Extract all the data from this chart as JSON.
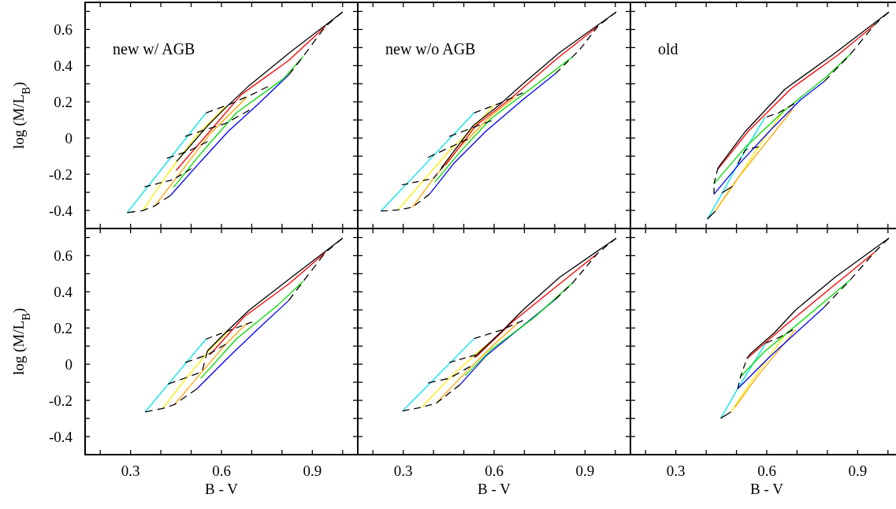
{
  "chart_data": [
    {
      "type": "line",
      "ylabel": "log (M/L$_{B}$)",
      "xlim": [
        0.15,
        1.05
      ],
      "ylim": [
        -0.5,
        0.75
      ],
      "tick_labels": "y",
      "annotations": [
        "new w/ AGB"
      ],
      "xticks": [
        {
          "value": 0.2,
          "label": null
        },
        0.3,
        {
          "value": 0.4,
          "label": null
        },
        {
          "value": 0.5,
          "label": null
        },
        0.6,
        {
          "value": 0.7,
          "label": null
        },
        {
          "value": 0.8,
          "label": null
        },
        0.9,
        {
          "value": 1.0,
          "label": null
        }
      ],
      "yticks": [
        -0.4,
        {
          "value": -0.3,
          "label": null
        },
        -0.2,
        {
          "value": -0.1,
          "label": null
        },
        0,
        {
          "value": 0.1,
          "label": null
        },
        0.2,
        {
          "value": 0.3,
          "label": null
        },
        0.4,
        {
          "value": 0.5,
          "label": null
        },
        0.6,
        {
          "value": 0.7,
          "label": null
        }
      ],
      "series": [
        {
          "color": "#00e5ee",
          "x": [
            0.289,
            0.549
          ],
          "values": [
            -0.412,
            0.139
          ]
        },
        {
          "color": "#ffee00",
          "x": [
            0.34,
            0.424,
            0.519,
            0.614
          ],
          "values": [
            -0.401,
            -0.194,
            0.016,
            0.175
          ]
        },
        {
          "color": "#ffa500",
          "x": [
            0.38,
            0.476,
            0.562,
            0.684
          ],
          "values": [
            -0.375,
            -0.165,
            0.023,
            0.226
          ]
        },
        {
          "color": "#0000ff",
          "x": [
            0.432,
            0.528,
            0.623,
            0.718,
            0.822
          ],
          "values": [
            -0.317,
            -0.136,
            0.038,
            0.183,
            0.349
          ]
        },
        {
          "color": "#00dd00",
          "x": [
            0.441,
            0.528,
            0.649,
            0.805,
            0.87
          ],
          "values": [
            -0.274,
            -0.093,
            0.139,
            0.328,
            0.451
          ]
        },
        {
          "color": "#ff0000",
          "x": [
            0.45,
            0.562,
            0.666,
            0.822,
            0.943
          ],
          "values": [
            -0.18,
            0.038,
            0.241,
            0.429,
            0.617
          ]
        },
        {
          "color": "#000000",
          "x": [
            0.452,
            0.554,
            0.614,
            0.692,
            0.831,
            1.0
          ],
          "values": [
            -0.129,
            0.067,
            0.168,
            0.291,
            0.48,
            0.697
          ]
        },
        {
          "color": "#000000",
          "line_style": "dashed",
          "x": [
            0.289,
            0.34,
            0.38,
            0.432
          ],
          "values": [
            -0.412,
            -0.401,
            -0.375,
            -0.317
          ]
        },
        {
          "color": "#000000",
          "line_style": "dashed",
          "x": [
            0.346,
            0.44,
            0.5
          ],
          "values": [
            -0.27,
            -0.23,
            -0.17
          ]
        },
        {
          "color": "#000000",
          "line_style": "dashed",
          "x": [
            0.42,
            0.493,
            0.554
          ],
          "values": [
            -0.112,
            -0.071,
            -0.02
          ]
        },
        {
          "color": "#000000",
          "line_style": "dashed",
          "x": [
            0.48,
            0.545,
            0.614,
            0.692
          ],
          "values": [
            0.009,
            0.045,
            0.081,
            0.154
          ]
        },
        {
          "color": "#000000",
          "line_style": "dashed",
          "x": [
            0.549,
            0.632,
            0.701,
            0.753
          ],
          "values": [
            0.139,
            0.19,
            0.241,
            0.284
          ]
        },
        {
          "color": "#000000",
          "line_style": "dashed",
          "x": [
            1.0,
            0.943,
            0.87,
            0.822
          ],
          "values": [
            0.697,
            0.617,
            0.451,
            0.349
          ]
        }
      ]
    },
    {
      "type": "line",
      "xlim": [
        0.15,
        1.05
      ],
      "ylim": [
        -0.5,
        0.75
      ],
      "tick_labels": false,
      "annotations": [
        "new w/o AGB"
      ],
      "xticks": [
        {
          "value": 0.2,
          "label": null
        },
        0.3,
        {
          "value": 0.4,
          "label": null
        },
        {
          "value": 0.5,
          "label": null
        },
        0.6,
        {
          "value": 0.7,
          "label": null
        },
        {
          "value": 0.8,
          "label": null
        },
        0.9,
        {
          "value": 1.0,
          "label": null
        }
      ],
      "yticks": [
        -0.4,
        {
          "value": -0.3,
          "label": null
        },
        -0.2,
        {
          "value": -0.1,
          "label": null
        },
        0,
        {
          "value": 0.1,
          "label": null
        },
        0.2,
        {
          "value": 0.3,
          "label": null
        },
        0.4,
        {
          "value": 0.5,
          "label": null
        },
        0.6,
        {
          "value": 0.7,
          "label": null
        }
      ],
      "series": [
        {
          "color": "#00e5ee",
          "x": [
            0.226,
            0.534
          ],
          "values": [
            -0.404,
            0.139
          ]
        },
        {
          "color": "#ffee00",
          "x": [
            0.283,
            0.365,
            0.452,
            0.534,
            0.6
          ],
          "values": [
            -0.397,
            -0.238,
            -0.071,
            0.059,
            0.183
          ]
        },
        {
          "color": "#ffa500",
          "x": [
            0.33,
            0.4,
            0.487,
            0.591,
            0.669
          ],
          "values": [
            -0.383,
            -0.223,
            -0.049,
            0.125,
            0.226
          ]
        },
        {
          "color": "#0000ff",
          "x": [
            0.387,
            0.469,
            0.573,
            0.695,
            0.803
          ],
          "values": [
            -0.31,
            -0.136,
            0.038,
            0.212,
            0.357
          ]
        },
        {
          "color": "#00dd00",
          "x": [
            0.404,
            0.487,
            0.591,
            0.73,
            0.86
          ],
          "values": [
            -0.245,
            -0.078,
            0.11,
            0.284,
            0.451
          ]
        },
        {
          "color": "#ff0000",
          "x": [
            0.439,
            0.539,
            0.66,
            0.8,
            0.942
          ],
          "values": [
            -0.151,
            0.067,
            0.226,
            0.429,
            0.617
          ]
        },
        {
          "color": "#000000",
          "x": [
            0.426,
            0.53,
            0.617,
            0.695,
            0.816,
            1.003
          ],
          "values": [
            -0.165,
            0.067,
            0.183,
            0.299,
            0.472,
            0.697
          ]
        },
        {
          "color": "#000000",
          "line_style": "dashed",
          "x": [
            0.226,
            0.283,
            0.33,
            0.387
          ],
          "values": [
            -0.404,
            -0.397,
            -0.383,
            -0.31
          ]
        },
        {
          "color": "#000000",
          "line_style": "dashed",
          "x": [
            0.296,
            0.4,
            0.435
          ],
          "values": [
            -0.259,
            -0.223,
            -0.151
          ]
        },
        {
          "color": "#000000",
          "line_style": "dashed",
          "x": [
            0.382,
            0.513
          ],
          "values": [
            -0.107,
            -0.006
          ]
        },
        {
          "color": "#000000",
          "line_style": "dashed",
          "x": [
            0.452,
            0.591
          ],
          "values": [
            0.009,
            0.096
          ]
        },
        {
          "color": "#000000",
          "line_style": "dashed",
          "x": [
            0.534,
            0.626,
            0.695
          ],
          "values": [
            0.139,
            0.197,
            0.25
          ]
        },
        {
          "color": "#000000",
          "line_style": "dashed",
          "x": [
            1.003,
            0.942,
            0.882,
            0.86,
            0.803
          ],
          "values": [
            0.697,
            0.617,
            0.487,
            0.451,
            0.357
          ]
        }
      ]
    },
    {
      "type": "line",
      "xlim": [
        0.15,
        1.05
      ],
      "ylim": [
        -0.5,
        0.75
      ],
      "tick_labels": false,
      "annotations": [
        "old"
      ],
      "xticks": [
        {
          "value": 0.2,
          "label": null
        },
        0.3,
        {
          "value": 0.4,
          "label": null
        },
        {
          "value": 0.5,
          "label": null
        },
        0.6,
        {
          "value": 0.7,
          "label": null
        },
        {
          "value": 0.8,
          "label": null
        },
        0.9,
        {
          "value": 1.0,
          "label": null
        }
      ],
      "yticks": [
        -0.4,
        {
          "value": -0.3,
          "label": null
        },
        -0.2,
        {
          "value": -0.1,
          "label": null
        },
        0,
        {
          "value": 0.1,
          "label": null
        },
        0.2,
        {
          "value": 0.3,
          "label": null
        },
        0.4,
        {
          "value": 0.5,
          "label": null
        },
        0.6,
        {
          "value": 0.7,
          "label": null
        }
      ],
      "series": [
        {
          "color": "#00e5ee",
          "x": [
            0.404,
            0.461,
            0.53,
            0.595
          ],
          "values": [
            -0.448,
            -0.281,
            -0.064,
            0.117
          ]
        },
        {
          "color": "#ffee00",
          "x": [
            0.43,
            0.487,
            0.573,
            0.66
          ],
          "values": [
            -0.404,
            -0.267,
            -0.049,
            0.161
          ]
        },
        {
          "color": "#ffa500",
          "x": [
            0.43,
            0.504,
            0.6,
            0.686
          ],
          "values": [
            -0.404,
            -0.223,
            -0.02,
            0.161
          ]
        },
        {
          "color": "#0000ff",
          "x": [
            0.426,
            0.513,
            0.617,
            0.712,
            0.79
          ],
          "values": [
            -0.31,
            -0.136,
            0.052,
            0.212,
            0.313
          ]
        },
        {
          "color": "#00dd00",
          "x": [
            0.426,
            0.53,
            0.66,
            0.799,
            0.877
          ],
          "values": [
            -0.252,
            -0.049,
            0.154,
            0.342,
            0.465
          ]
        },
        {
          "color": "#ff0000",
          "x": [
            0.439,
            0.539,
            0.678,
            0.834,
            0.955
          ],
          "values": [
            -0.172,
            0.038,
            0.27,
            0.458,
            0.625
          ]
        },
        {
          "color": "#000000",
          "x": [
            0.439,
            0.53,
            0.66,
            0.816,
            1.003
          ],
          "values": [
            -0.165,
            0.038,
            0.27,
            0.458,
            0.697
          ]
        },
        {
          "color": "#000000",
          "line_style": "dashed",
          "x": [
            0.404,
            0.43
          ],
          "values": [
            -0.448,
            -0.404
          ]
        },
        {
          "color": "#000000",
          "line_style": "dashed",
          "x": [
            0.426,
            0.426,
            0.439
          ],
          "values": [
            -0.31,
            -0.252,
            -0.165
          ]
        },
        {
          "color": "#000000",
          "line_style": "dashed",
          "x": [
            0.452,
            0.487
          ],
          "values": [
            -0.303,
            -0.267
          ]
        },
        {
          "color": "#000000",
          "line_style": "dashed",
          "x": [
            0.504,
            0.53,
            0.573
          ],
          "values": [
            -0.143,
            -0.064,
            -0.049
          ]
        },
        {
          "color": "#000000",
          "line_style": "dashed",
          "x": [
            0.6,
            0.639,
            0.691
          ],
          "values": [
            0.117,
            0.139,
            0.19
          ]
        },
        {
          "color": "#000000",
          "line_style": "dashed",
          "x": [
            1.003,
            0.955,
            0.877,
            0.79
          ],
          "values": [
            0.697,
            0.625,
            0.465,
            0.313
          ]
        }
      ]
    },
    {
      "type": "line",
      "xlabel": "B - V",
      "ylabel": "log (M/L$_{B}$)",
      "xlim": [
        0.15,
        1.05
      ],
      "ylim": [
        -0.5,
        0.75
      ],
      "xticks": [
        {
          "value": 0.2,
          "label": null
        },
        0.3,
        {
          "value": 0.4,
          "label": null
        },
        {
          "value": 0.5,
          "label": null
        },
        0.6,
        {
          "value": 0.7,
          "label": null
        },
        {
          "value": 0.8,
          "label": null
        },
        0.9,
        {
          "value": 1.0,
          "label": null
        }
      ],
      "yticks": [
        -0.4,
        {
          "value": -0.3,
          "label": null
        },
        -0.2,
        {
          "value": -0.1,
          "label": null
        },
        0,
        {
          "value": 0.1,
          "label": null
        },
        0.2,
        {
          "value": 0.3,
          "label": null
        },
        0.4,
        {
          "value": 0.5,
          "label": null
        },
        0.6,
        {
          "value": 0.7,
          "label": null
        }
      ],
      "series": [
        {
          "color": "#00e5ee",
          "x": [
            0.348,
            0.549
          ],
          "values": [
            -0.264,
            0.139
          ]
        },
        {
          "color": "#ffee00",
          "x": [
            0.406,
            0.476,
            0.562,
            0.623
          ],
          "values": [
            -0.245,
            -0.093,
            0.081,
            0.183
          ]
        },
        {
          "color": "#ffa500",
          "x": [
            0.445,
            0.536,
            0.614,
            0.684
          ],
          "values": [
            -0.223,
            -0.042,
            0.11,
            0.226
          ]
        },
        {
          "color": "#0000ff",
          "x": [
            0.519,
            0.623,
            0.718,
            0.822
          ],
          "values": [
            -0.136,
            0.038,
            0.19,
            0.352
          ]
        },
        {
          "color": "#00dd00",
          "x": [
            0.532,
            0.649,
            0.787,
            0.87
          ],
          "values": [
            -0.078,
            0.139,
            0.328,
            0.458
          ]
        },
        {
          "color": "#ff0000",
          "x": [
            0.562,
            0.675,
            0.822,
            0.943
          ],
          "values": [
            0.052,
            0.262,
            0.443,
            0.617
          ]
        },
        {
          "color": "#000000",
          "x": [
            0.554,
            0.614,
            0.692,
            0.831,
            1.0
          ],
          "values": [
            0.074,
            0.175,
            0.299,
            0.48,
            0.697
          ]
        },
        {
          "color": "#000000",
          "line_style": "dashed",
          "x": [
            0.348,
            0.406,
            0.445,
            0.519
          ],
          "values": [
            -0.264,
            -0.245,
            -0.223,
            -0.136
          ]
        },
        {
          "color": "#000000",
          "line_style": "dashed",
          "x": [
            0.424,
            0.536,
            0.554
          ],
          "values": [
            -0.11,
            -0.042,
            0.074
          ]
        },
        {
          "color": "#000000",
          "line_style": "dashed",
          "x": [
            0.48,
            0.554,
            0.614
          ],
          "values": [
            0.009,
            0.052,
            0.11
          ]
        },
        {
          "color": "#000000",
          "line_style": "dashed",
          "x": [
            0.549,
            0.632,
            0.701
          ],
          "values": [
            0.139,
            0.19,
            0.233
          ]
        },
        {
          "color": "#000000",
          "line_style": "dashed",
          "x": [
            1.0,
            0.943,
            0.87,
            0.822
          ],
          "values": [
            0.697,
            0.617,
            0.458,
            0.352
          ]
        }
      ]
    },
    {
      "type": "line",
      "xlabel": "B - V",
      "xlim": [
        0.15,
        1.05
      ],
      "ylim": [
        -0.5,
        0.75
      ],
      "tick_labels": "x",
      "xticks": [
        {
          "value": 0.2,
          "label": null
        },
        0.3,
        {
          "value": 0.4,
          "label": null
        },
        {
          "value": 0.5,
          "label": null
        },
        0.6,
        {
          "value": 0.7,
          "label": null
        },
        {
          "value": 0.8,
          "label": null
        },
        0.9,
        {
          "value": 1.0,
          "label": null
        }
      ],
      "yticks": [
        -0.4,
        {
          "value": -0.3,
          "label": null
        },
        -0.2,
        {
          "value": -0.1,
          "label": null
        },
        0,
        {
          "value": 0.1,
          "label": null
        },
        0.2,
        {
          "value": 0.3,
          "label": null
        },
        0.4,
        {
          "value": 0.5,
          "label": null
        },
        0.6,
        {
          "value": 0.7,
          "label": null
        }
      ],
      "series": [
        {
          "color": "#00e5ee",
          "x": [
            0.298,
            0.534
          ],
          "values": [
            -0.259,
            0.142
          ]
        },
        {
          "color": "#ffee00",
          "x": [
            0.361,
            0.452,
            0.547,
            0.612
          ],
          "values": [
            -0.238,
            -0.078,
            0.067,
            0.154
          ]
        },
        {
          "color": "#ffa500",
          "x": [
            0.409,
            0.495,
            0.6,
            0.678
          ],
          "values": [
            -0.216,
            -0.064,
            0.11,
            0.226
          ]
        },
        {
          "color": "#0000ff",
          "x": [
            0.487,
            0.573,
            0.695,
            0.803
          ],
          "values": [
            -0.114,
            0.045,
            0.212,
            0.359
          ]
        },
        {
          "color": "#00dd00",
          "x": [
            0.504,
            0.591,
            0.73,
            0.86
          ],
          "values": [
            -0.064,
            0.081,
            0.255,
            0.451
          ]
        },
        {
          "color": "#ff0000",
          "x": [
            0.539,
            0.66,
            0.8,
            0.94
          ],
          "values": [
            0.038,
            0.233,
            0.422,
            0.61
          ]
        },
        {
          "color": "#000000",
          "x": [
            0.534,
            0.626,
            0.695,
            0.816,
            1.003
          ],
          "values": [
            0.038,
            0.183,
            0.299,
            0.48,
            0.697
          ]
        },
        {
          "color": "#000000",
          "line_style": "dashed",
          "x": [
            0.298,
            0.361,
            0.409,
            0.487
          ],
          "values": [
            -0.259,
            -0.238,
            -0.216,
            -0.114
          ]
        },
        {
          "color": "#000000",
          "line_style": "dashed",
          "x": [
            0.382,
            0.452,
            0.521
          ],
          "values": [
            -0.104,
            -0.078,
            -0.013
          ]
        },
        {
          "color": "#000000",
          "line_style": "dashed",
          "x": [
            0.452,
            0.539
          ],
          "values": [
            0.009,
            0.052
          ]
        },
        {
          "color": "#000000",
          "line_style": "dashed",
          "x": [
            0.534,
            0.626,
            0.695
          ],
          "values": [
            0.142,
            0.19,
            0.241
          ]
        },
        {
          "color": "#000000",
          "line_style": "dashed",
          "x": [
            1.003,
            0.94,
            0.86,
            0.803
          ],
          "values": [
            0.697,
            0.61,
            0.451,
            0.359
          ]
        }
      ]
    },
    {
      "type": "line",
      "xlabel": "B - V",
      "xlim": [
        0.15,
        1.05
      ],
      "ylim": [
        -0.5,
        0.75
      ],
      "tick_labels": "x",
      "xticks": [
        {
          "value": 0.2,
          "label": null
        },
        0.3,
        {
          "value": 0.4,
          "label": null
        },
        {
          "value": 0.5,
          "label": null
        },
        0.6,
        {
          "value": 0.7,
          "label": null
        },
        {
          "value": 0.8,
          "label": null
        },
        0.9,
        {
          "value": 1.0,
          "label": null
        }
      ],
      "yticks": [
        -0.4,
        {
          "value": -0.3,
          "label": null
        },
        -0.2,
        {
          "value": -0.1,
          "label": null
        },
        0,
        {
          "value": 0.1,
          "label": null
        },
        0.2,
        {
          "value": 0.3,
          "label": null
        },
        0.4,
        {
          "value": 0.5,
          "label": null
        },
        0.6,
        {
          "value": 0.7,
          "label": null
        }
      ],
      "series": [
        {
          "color": "#00e5ee",
          "x": [
            0.448,
            0.504,
            0.597
          ],
          "values": [
            -0.299,
            -0.136,
            0.117
          ]
        },
        {
          "color": "#ffee00",
          "x": [
            0.482,
            0.556,
            0.66
          ],
          "values": [
            -0.264,
            -0.078,
            0.161
          ]
        },
        {
          "color": "#ffa500",
          "x": [
            0.495,
            0.574,
            0.695
          ],
          "values": [
            -0.238,
            -0.056,
            0.19
          ]
        },
        {
          "color": "#0000ff",
          "x": [
            0.504,
            0.608,
            0.712,
            0.79
          ],
          "values": [
            -0.136,
            0.038,
            0.197,
            0.316
          ]
        },
        {
          "color": "#00dd00",
          "x": [
            0.513,
            0.591,
            0.747,
            0.875
          ],
          "values": [
            -0.071,
            0.067,
            0.284,
            0.465
          ]
        },
        {
          "color": "#ff0000",
          "x": [
            0.534,
            0.66,
            0.817,
            0.955
          ],
          "values": [
            0.03,
            0.212,
            0.429,
            0.617
          ]
        },
        {
          "color": "#000000",
          "x": [
            0.547,
            0.626,
            0.695,
            0.825,
            1.003
          ],
          "values": [
            0.059,
            0.175,
            0.299,
            0.48,
            0.697
          ]
        },
        {
          "color": "#000000",
          "line_style": "dashed",
          "x": [
            0.448,
            0.482
          ],
          "values": [
            -0.299,
            -0.264
          ]
        },
        {
          "color": "#000000",
          "line_style": "dashed",
          "x": [
            0.504,
            0.513,
            0.534,
            0.547
          ],
          "values": [
            -0.136,
            -0.071,
            0.03,
            0.059
          ]
        },
        {
          "color": "#000000",
          "line_style": "dashed",
          "x": [
            0.597,
            0.639,
            0.686
          ],
          "values": [
            0.117,
            0.146,
            0.19
          ]
        },
        {
          "color": "#000000",
          "line_style": "dashed",
          "x": [
            1.003,
            0.955,
            0.875,
            0.79
          ],
          "values": [
            0.697,
            0.617,
            0.465,
            0.316
          ]
        }
      ]
    }
  ]
}
